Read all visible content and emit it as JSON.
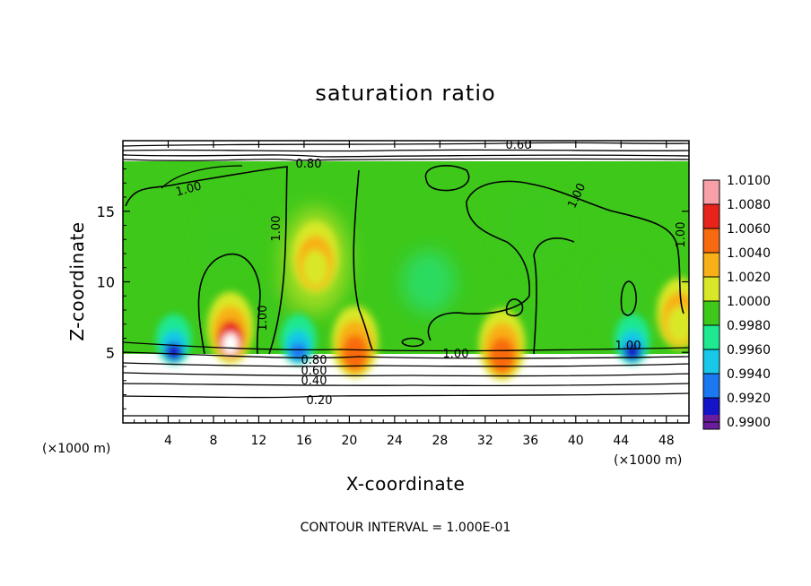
{
  "chart_data": {
    "type": "heatmap",
    "title": "saturation ratio",
    "xlabel": "X-coordinate",
    "ylabel": "Z-coordinate",
    "x_unit": "(×1000 m)",
    "y_unit": "(×1000 m)",
    "xlim": [
      0,
      50
    ],
    "ylim": [
      0,
      20
    ],
    "x_ticks": [
      "4",
      "8",
      "12",
      "16",
      "20",
      "24",
      "28",
      "32",
      "36",
      "40",
      "44",
      "48"
    ],
    "y_ticks": [
      "5",
      "10",
      "15"
    ],
    "colorbar": {
      "levels": [
        "1.0100",
        "1.0080",
        "1.0060",
        "1.0040",
        "1.0020",
        "1.0000",
        "0.9980",
        "0.9960",
        "0.9940",
        "0.9920",
        "0.9900"
      ],
      "colors": [
        "#f7a0a8",
        "#e8231c",
        "#f86a10",
        "#f8b018",
        "#d8e828",
        "#3ec81a",
        "#1ee890",
        "#18c8e8",
        "#1a78f0",
        "#1414c8",
        "#6a1e9e"
      ]
    },
    "contour_labels": [
      "0.60",
      "0.80",
      "1.00",
      "1.00",
      "1.00",
      "1.00",
      "1.00",
      "1.00",
      "1.00",
      "0.80",
      "0.60",
      "0.40",
      "0.20"
    ],
    "annotation": "CONTOUR INTERVAL = 1.000E-01",
    "hotspots": [
      {
        "x": 9.5,
        "z": 6.5,
        "value": 1.009
      },
      {
        "x": 20.5,
        "z": 5.5,
        "value": 1.007
      },
      {
        "x": 33.5,
        "z": 5.3,
        "value": 1.006
      },
      {
        "x": 49.2,
        "z": 7.5,
        "value": 1.003
      },
      {
        "x": 17.0,
        "z": 11.5,
        "value": 1.002
      },
      {
        "x": 4.5,
        "z": 5.3,
        "value": 0.993
      },
      {
        "x": 15.5,
        "z": 5.3,
        "value": 0.994
      },
      {
        "x": 45.0,
        "z": 5.3,
        "value": 0.993
      }
    ]
  }
}
